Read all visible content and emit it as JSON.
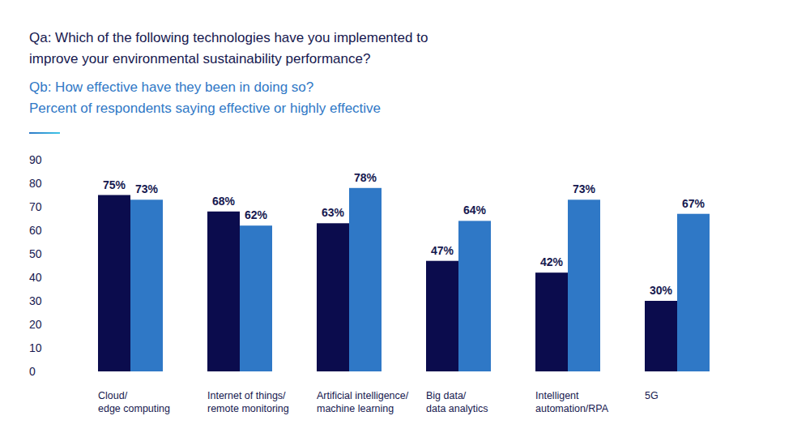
{
  "chart_data": {
    "type": "bar",
    "title": "Qa: Which of the following technologies have you implemented to\nimprove your environmental sustainability performance?",
    "subtitle": "Qb: How effective have they been in doing so?\nPercent of respondents saying effective or highly effective",
    "categories": [
      "Cloud/\nedge computing",
      "Internet of things/\nremote monitoring",
      "Artificial intelligence/\nmachine learning",
      "Big data/\ndata analytics",
      "Intelligent\nautomation/RPA",
      "5G"
    ],
    "series": [
      {
        "color": "#0b0c4d",
        "values": [
          75,
          68,
          63,
          47,
          42,
          30
        ],
        "value_labels": [
          "75%",
          "68%",
          "63%",
          "47%",
          "42%",
          "30%"
        ]
      },
      {
        "color": "#2f78c6",
        "values": [
          73,
          62,
          78,
          64,
          73,
          67
        ],
        "value_labels": [
          "73%",
          "62%",
          "78%",
          "64%",
          "73%",
          "67%"
        ]
      }
    ],
    "ylim": [
      0,
      90
    ],
    "yticks": [
      0,
      10,
      20,
      30,
      40,
      50,
      60,
      70,
      80,
      90
    ],
    "grid": false,
    "data_labels": true
  }
}
